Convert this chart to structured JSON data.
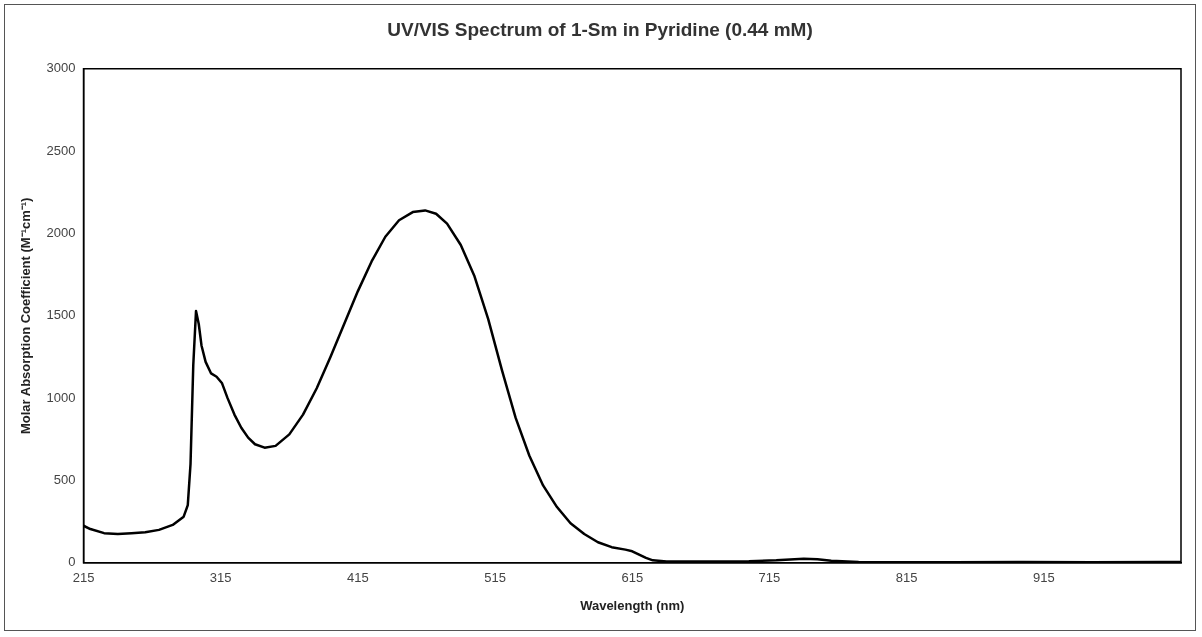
{
  "chart_data": {
    "type": "line",
    "title": "UV/VIS Spectrum of 1-Sm in Pyridine (0.44 mM)",
    "xlabel": "Wavelength (nm)",
    "ylabel": "Molar Absorption Coefficient (M⁻¹cm⁻¹)",
    "xlim": [
      215,
      1015
    ],
    "xticks": [
      215,
      315,
      415,
      515,
      615,
      715,
      815,
      915
    ],
    "ylim": [
      0,
      3000
    ],
    "yticks": [
      0,
      500,
      1000,
      1500,
      2000,
      2500,
      3000
    ],
    "grid": false,
    "legend": false,
    "marker": "none",
    "line_style": "solid",
    "series": [
      {
        "color": "#000000",
        "x": [
          215,
          220,
          230,
          240,
          250,
          260,
          270,
          280,
          288,
          291,
          293,
          295,
          297,
          299,
          301,
          304,
          308,
          312,
          316,
          320,
          325,
          330,
          335,
          340,
          347,
          355,
          365,
          375,
          385,
          395,
          405,
          415,
          425,
          435,
          445,
          455,
          464,
          472,
          480,
          490,
          500,
          510,
          520,
          530,
          540,
          550,
          560,
          570,
          580,
          590,
          600,
          610,
          615,
          620,
          625,
          630,
          640,
          660,
          700,
          720,
          740,
          750,
          760,
          780,
          850,
          900,
          950,
          1000,
          1015
        ],
        "values": [
          225,
          205,
          180,
          175,
          180,
          185,
          200,
          230,
          280,
          350,
          600,
          1200,
          1529,
          1450,
          1320,
          1220,
          1150,
          1130,
          1090,
          1000,
          900,
          820,
          760,
          720,
          699,
          710,
          780,
          900,
          1060,
          1250,
          1450,
          1650,
          1830,
          1980,
          2080,
          2130,
          2140,
          2120,
          2060,
          1930,
          1740,
          1480,
          1170,
          880,
          650,
          470,
          340,
          240,
          175,
          125,
          95,
          80,
          70,
          50,
          30,
          15,
          8,
          8,
          10,
          15,
          25,
          22,
          12,
          5,
          3,
          5,
          3,
          5,
          5
        ]
      }
    ]
  }
}
